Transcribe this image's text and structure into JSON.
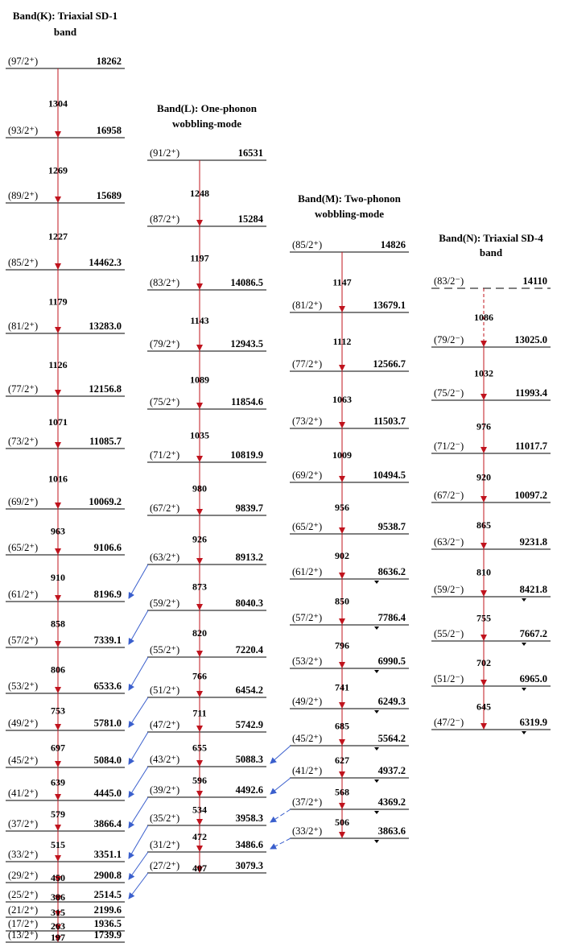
{
  "colors": {
    "transition": "#c0141e",
    "linking": "#3a5fcd",
    "level": "#000000"
  },
  "bands": [
    {
      "id": "K",
      "title": [
        "Band(K): Triaxial SD-1",
        "band"
      ],
      "levels": [
        {
          "label": "(97/2⁺)",
          "energy": "18262"
        },
        {
          "label": "(93/2⁺)",
          "energy": "16958"
        },
        {
          "label": "(89/2⁺)",
          "energy": "15689"
        },
        {
          "label": "(85/2⁺)",
          "energy": "14462.3"
        },
        {
          "label": "(81/2⁺)",
          "energy": "13283.0"
        },
        {
          "label": "(77/2⁺)",
          "energy": "12156.8"
        },
        {
          "label": "(73/2⁺)",
          "energy": "11085.7"
        },
        {
          "label": "(69/2⁺)",
          "energy": "10069.2"
        },
        {
          "label": "(65/2⁺)",
          "energy": "9106.6"
        },
        {
          "label": "(61/2⁺)",
          "energy": "8196.9"
        },
        {
          "label": "(57/2⁺)",
          "energy": "7339.1"
        },
        {
          "label": "(53/2⁺)",
          "energy": "6533.6"
        },
        {
          "label": "(49/2⁺)",
          "energy": "5781.0"
        },
        {
          "label": "(45/2⁺)",
          "energy": "5084.0"
        },
        {
          "label": "(41/2⁺)",
          "energy": "4445.0"
        },
        {
          "label": "(37/2⁺)",
          "energy": "3866.4"
        },
        {
          "label": "(33/2⁺)",
          "energy": "3351.1"
        },
        {
          "label": "(29/2⁺)",
          "energy": "2900.8"
        },
        {
          "label": "(25/2⁺)",
          "energy": "2514.5"
        },
        {
          "label": "(21/2⁺)",
          "energy": "2199.6"
        },
        {
          "label": "(17/2⁺)",
          "energy": "1936.5"
        },
        {
          "label": "(13/2⁺)",
          "energy": "1739.9"
        }
      ],
      "transitions": [
        "1304",
        "1269",
        "1227",
        "1179",
        "1126",
        "1071",
        "1016",
        "963",
        "910",
        "858",
        "806",
        "753",
        "697",
        "639",
        "579",
        "515",
        "450",
        "386",
        "315",
        "263",
        "197"
      ]
    },
    {
      "id": "L",
      "title": [
        "Band(L): One-phonon",
        "wobbling-mode"
      ],
      "levels": [
        {
          "label": "(91/2⁺)",
          "energy": "16531"
        },
        {
          "label": "(87/2⁺)",
          "energy": "15284"
        },
        {
          "label": "(83/2⁺)",
          "energy": "14086.5"
        },
        {
          "label": "(79/2⁺)",
          "energy": "12943.5"
        },
        {
          "label": "(75/2⁺)",
          "energy": "11854.6"
        },
        {
          "label": "(71/2⁺)",
          "energy": "10819.9"
        },
        {
          "label": "(67/2⁺)",
          "energy": "9839.7"
        },
        {
          "label": "(63/2⁺)",
          "energy": "8913.2"
        },
        {
          "label": "(59/2⁺)",
          "energy": "8040.3"
        },
        {
          "label": "(55/2⁺)",
          "energy": "7220.4"
        },
        {
          "label": "(51/2⁺)",
          "energy": "6454.2"
        },
        {
          "label": "(47/2⁺)",
          "energy": "5742.9"
        },
        {
          "label": "(43/2⁺)",
          "energy": "5088.3"
        },
        {
          "label": "(39/2⁺)",
          "energy": "4492.6"
        },
        {
          "label": "(35/2⁺)",
          "energy": "3958.3"
        },
        {
          "label": "(31/2⁺)",
          "energy": "3486.6"
        },
        {
          "label": "(27/2⁺)",
          "energy": "3079.3"
        }
      ],
      "transitions": [
        "1248",
        "1197",
        "1143",
        "1089",
        "1035",
        "980",
        "926",
        "873",
        "820",
        "766",
        "711",
        "655",
        "596",
        "534",
        "472",
        "407"
      ]
    },
    {
      "id": "M",
      "title": [
        "Band(M): Two-phonon",
        "wobbling-mode"
      ],
      "levels": [
        {
          "label": "(85/2⁺)",
          "energy": "14826"
        },
        {
          "label": "(81/2⁺)",
          "energy": "13679.1"
        },
        {
          "label": "(77/2⁺)",
          "energy": "12566.7"
        },
        {
          "label": "(73/2⁺)",
          "energy": "11503.7"
        },
        {
          "label": "(69/2⁺)",
          "energy": "10494.5"
        },
        {
          "label": "(65/2⁺)",
          "energy": "9538.7"
        },
        {
          "label": "(61/2⁺)",
          "energy": "8636.2"
        },
        {
          "label": "(57/2⁺)",
          "energy": "7786.4"
        },
        {
          "label": "(53/2⁺)",
          "energy": "6990.5"
        },
        {
          "label": "(49/2⁺)",
          "energy": "6249.3"
        },
        {
          "label": "(45/2⁺)",
          "energy": "5564.2"
        },
        {
          "label": "(41/2⁺)",
          "energy": "4937.2"
        },
        {
          "label": "(37/2⁺)",
          "energy": "4369.2"
        },
        {
          "label": "(33/2⁺)",
          "energy": "3863.6"
        }
      ],
      "transitions": [
        "1147",
        "1112",
        "1063",
        "1009",
        "956",
        "902",
        "850",
        "796",
        "741",
        "685",
        "627",
        "568",
        "506"
      ]
    },
    {
      "id": "N",
      "title": [
        "Band(N): Triaxial SD-4",
        "band"
      ],
      "levels": [
        {
          "label": "(83/2⁻)",
          "energy": "14110"
        },
        {
          "label": "(79/2⁻)",
          "energy": "13025.0"
        },
        {
          "label": "(75/2⁻)",
          "energy": "11993.4"
        },
        {
          "label": "(71/2⁻)",
          "energy": "11017.7"
        },
        {
          "label": "(67/2⁻)",
          "energy": "10097.2"
        },
        {
          "label": "(63/2⁻)",
          "energy": "9231.8"
        },
        {
          "label": "(59/2⁻)",
          "energy": "8421.8"
        },
        {
          "label": "(55/2⁻)",
          "energy": "7667.2"
        },
        {
          "label": "(51/2⁻)",
          "energy": "6965.0"
        },
        {
          "label": "(47/2⁻)",
          "energy": "6319.9"
        }
      ],
      "transitions": [
        "1086",
        "1032",
        "976",
        "920",
        "865",
        "810",
        "755",
        "702",
        "645"
      ]
    }
  ]
}
